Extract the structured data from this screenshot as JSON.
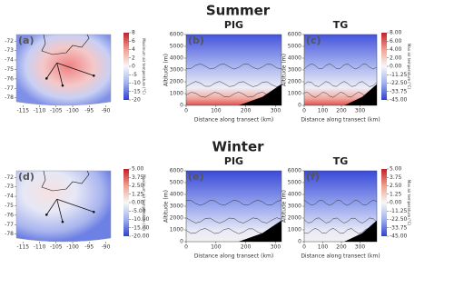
{
  "rows": [
    "Summer",
    "Winter"
  ],
  "chart_data": [
    {
      "type": "map",
      "panel": "(a)",
      "xticks": [
        -115,
        -110,
        -105,
        -100,
        -95,
        -90
      ],
      "xlim": [
        -117,
        -88.5
      ],
      "yticks": [
        -72,
        -73,
        -74,
        -75,
        -76,
        -77,
        -78
      ],
      "ylim": [
        -78.8,
        -71.3
      ],
      "colorbar": {
        "label": "Maximum air temperature (°C)",
        "lim": [
          -20,
          8
        ],
        "ticks": [
          8,
          6,
          4,
          2,
          0,
          -5,
          -10,
          -15,
          -20
        ]
      }
    },
    {
      "type": "cross-section",
      "title": "PIG",
      "panel": "(b)",
      "xlabel": "Distance along transect (km)",
      "ylabel": "Altitude (m)",
      "xticks": [
        0,
        100,
        200,
        300
      ],
      "xlim": [
        0,
        320
      ],
      "yticks": [
        0,
        1000,
        2000,
        3000,
        4000,
        5000,
        6000
      ],
      "ylim": [
        0,
        6000
      ]
    },
    {
      "type": "cross-section",
      "title": "TG",
      "panel": "(c)",
      "xlabel": "Distance along transect (km)",
      "ylabel": "Altitude (m)",
      "xticks": [
        0,
        100,
        200,
        300
      ],
      "xlim": [
        0,
        390
      ],
      "yticks": [
        0,
        1000,
        2000,
        3000,
        4000,
        5000,
        6000
      ],
      "ylim": [
        0,
        6000
      ],
      "colorbar": {
        "label": "Max air temperature (°C)",
        "lim": [
          -45,
          8
        ],
        "ticks": [
          {
            "value": 8,
            "label": "8.00"
          },
          {
            "value": 6,
            "label": "6.00"
          },
          {
            "value": 4,
            "label": "4.00"
          },
          {
            "value": 2,
            "label": "2.00"
          },
          {
            "value": 0,
            "label": "0.00"
          },
          -11.25,
          {
            "value": -22.5,
            "label": "-22.50"
          },
          -33.75,
          {
            "value": -45,
            "label": "-45.00"
          }
        ]
      }
    },
    {
      "type": "map",
      "panel": "(d)",
      "xticks": [
        -115,
        -110,
        -105,
        -100,
        -95,
        -90
      ],
      "xlim": [
        -117,
        -88.5
      ],
      "yticks": [
        -72,
        -73,
        -74,
        -75,
        -76,
        -77,
        -78
      ],
      "ylim": [
        -78.8,
        -71.3
      ],
      "colorbar": {
        "label": "Maximum air temperature (°C)",
        "lim": [
          -20,
          5
        ],
        "ticks": [
          {
            "value": 5,
            "label": "5.00"
          },
          3.75,
          {
            "value": 2.5,
            "label": "2.50"
          },
          1.25,
          {
            "value": 0,
            "label": "0.00"
          },
          {
            "value": -5,
            "label": "-5.00"
          },
          {
            "value": -10,
            "label": "-10.00"
          },
          {
            "value": -15,
            "label": "-15.00"
          },
          {
            "value": -20,
            "label": "-20.00"
          }
        ]
      }
    },
    {
      "type": "cross-section",
      "title": "PIG",
      "panel": "(e)",
      "xlabel": "Distance along transect (km)",
      "ylabel": "Altitude (m)",
      "xticks": [
        0,
        100,
        200,
        300
      ],
      "xlim": [
        0,
        320
      ],
      "yticks": [
        0,
        1000,
        2000,
        3000,
        4000,
        5000,
        6000
      ],
      "ylim": [
        0,
        6000
      ]
    },
    {
      "type": "cross-section",
      "title": "TG",
      "panel": "(f)",
      "xlabel": "Distance along transect (km)",
      "ylabel": "Altitude (m)",
      "xticks": [
        0,
        100,
        200,
        300
      ],
      "xlim": [
        0,
        390
      ],
      "yticks": [
        0,
        1000,
        2000,
        3000,
        4000,
        5000,
        6000
      ],
      "ylim": [
        0,
        6000
      ],
      "colorbar": {
        "label": "Max air temperature (°C)",
        "lim": [
          -45,
          5
        ],
        "ticks": [
          {
            "value": 5,
            "label": "5.00"
          },
          3.75,
          {
            "value": 2.5,
            "label": "2.50"
          },
          1.25,
          {
            "value": 0,
            "label": "0.00"
          },
          -11.25,
          {
            "value": -22.5,
            "label": "-22.50"
          },
          -33.75,
          {
            "value": -45,
            "label": "-45.00"
          }
        ]
      }
    }
  ]
}
